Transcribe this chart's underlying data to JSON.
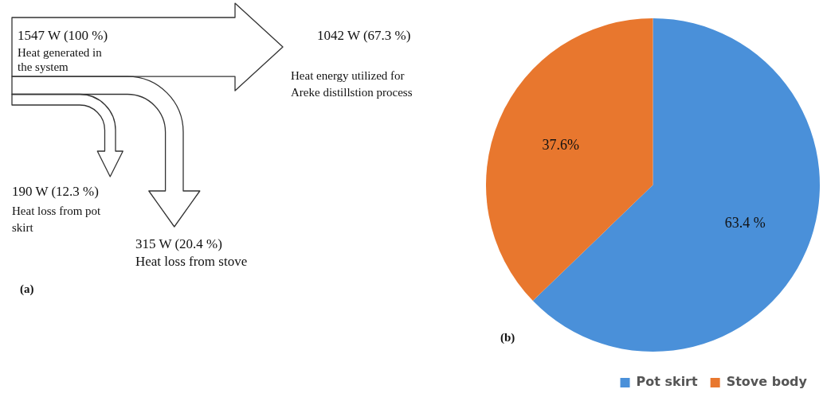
{
  "chart_data": [
    {
      "type": "other",
      "categories": [
        "Heat generated in the system",
        "Heat energy utilized for Areke distillstion process",
        "Heat loss from stove",
        "Heat loss from pot skirt"
      ],
      "values": [
        1547,
        1042,
        315,
        190
      ],
      "value_labels": [
        "1547 W (100 %)",
        "1042 W (67.3 %)",
        "315 W (20.4 %)",
        "190 W (12.3 %)"
      ],
      "annotations": [
        "(a)"
      ]
    },
    {
      "type": "pie",
      "categories": [
        "Pot skirt",
        "Stove body"
      ],
      "values": [
        63.4,
        37.6
      ],
      "colors": [
        "#4a90d9",
        "#e8772e"
      ],
      "value_labels": [
        "63.4 %",
        "37.6%"
      ],
      "legend": "bottom",
      "annotations": [
        "(b)"
      ]
    }
  ]
}
